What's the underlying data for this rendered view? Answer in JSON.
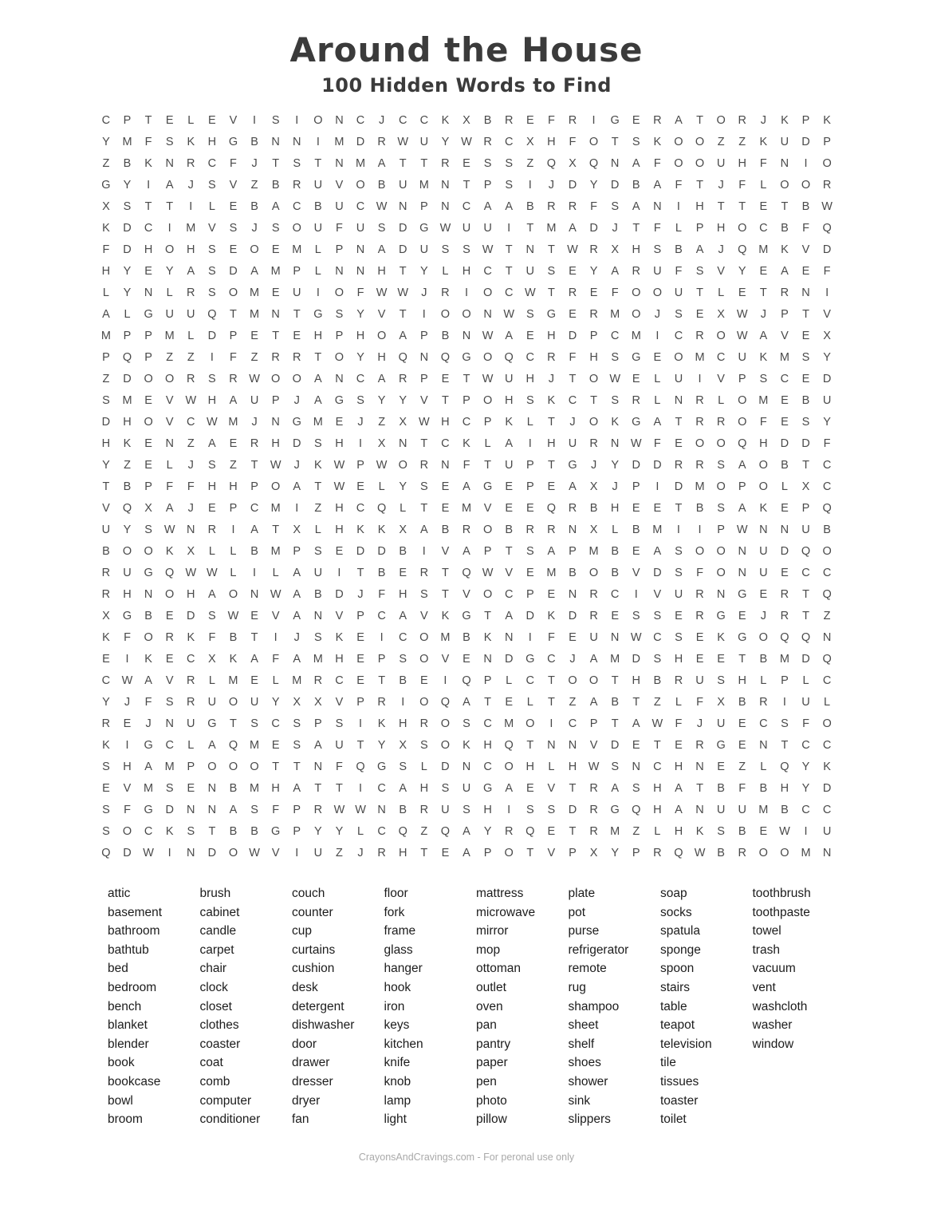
{
  "header": {
    "title": "Around the House",
    "subtitle": "100 Hidden Words to Find"
  },
  "grid": {
    "rows": 35,
    "cols": 35,
    "letters": [
      "CPTELEVISIONCJCCKXBREFRIGERATORJKPK",
      "YMFSKHGBNNIMDRWUYWRCXHFOTSKOOZZKUDP",
      "ZBKNRCFJTSTNMATTRESSZQXQNAFOOUHFNIO",
      "GYIAJSVZBRUVOBUMNTPSIJDYDBAFTJFLOOR",
      "XSTTILEBACBUCWNPNCAABRRFSANIHTTETBW",
      "KDCIMVSJSOUFUSDGWUUITMADJTFLPHOCBFQ",
      "FDHOHSEOEMLPNADUSSWTNTWRXHSBAJQMKVD",
      "HYEYASDAMPLNNHTYLHCTUSEYARUFSVYEAEF",
      "LYNLRSOMEUIOFWWJRIOCWTREFOOUTLETRNI",
      "ALGUUQTMNTGSYVTIOONWSGERMOJSEXWJPTV",
      "MPPMLDPETEHPHOAPBNWAEHDPCMICROWAVEX",
      "PQPZZIFZRRTOYHQNQGOQCRFHSGEOMCUKMSY",
      "ZDOORSRWOOANCARPETWUHJTOWELUIVPSCED",
      "SMEVWHAUPJAGSYYVTPOHSKCTSRLNRLOMEBU",
      "DHOVCWMJNGMEJZXWHCPKLTJOKGATRROFESY",
      "HKENZAERHDSHIXNTCKLAIHURNWFEOOQHDDF",
      "YZELJSZTWJKWPWORNFTUPTGJYDDRRSAOBTC",
      "TBPFFHHPOATWELYSEAGEPEAXJPIDMOPOLXC",
      "VQXAJEPCMIZHCQLTEMVEEQRBHEETBSAKEPQ",
      "UYSWNRIATXLHKKXABROBRRNXLBMIIPWNNUB",
      "BOOKXLLBMPSEDDBIVAPTSAPMBEASOONUDQO",
      "RUGQWWLILAUITBERTQWVEMBOBVDSFONUECC",
      "RHNOHAONWABDJFHSTVOCPENRCIVURNGERTQ",
      "XGBEDSWEVANVPCAVKGTADKDRESSERGEJRTZ",
      "KFORKFBTIJSKEICOMBKNIFEUNWCSEKGOQQN",
      "EIKECXKAFAMHEPSOVENDGCJAMDSHEETBMDQ",
      "CWAVRLMELMRCETBEIQPLCTOOTHBRUSHLPLC",
      "YJFSRUOUYXXVPRIOQATELTZABTZLFXBRIUL",
      "REJNUGTSCSPSIKHROSCMOICPTAWFJUECSFO",
      "KIGCLAQMESAUTYXSOKHQTNNVDETERGENTCC",
      "SHAMPOOOTTNFQGSLDNCOHLHWSNCHNEZLQYK",
      "EVMSENBMHATTICAHSUGAEVTRASHATBFBHYD",
      "SFGDNNASFPRWWNBRUSHISSDRGQHANUUMBCC",
      "SOCKSTBBGPYYLCQZQAYRQETRMZLHKSBEWIU",
      "QDWINDOWVIUZJRHTEAPOTVPXYPRQWBROOMN"
    ]
  },
  "word_list": {
    "columns": [
      [
        "attic",
        "basement",
        "bathroom",
        "bathtub",
        "bed",
        "bedroom",
        "bench",
        "blanket",
        "blender",
        "book",
        "bookcase",
        "bowl",
        "broom"
      ],
      [
        "brush",
        "cabinet",
        "candle",
        "carpet",
        "chair",
        "clock",
        "closet",
        "clothes",
        "coaster",
        "coat",
        "comb",
        "computer",
        "conditioner"
      ],
      [
        "couch",
        "counter",
        "cup",
        "curtains",
        "cushion",
        "desk",
        "detergent",
        "dishwasher",
        "door",
        "drawer",
        "dresser",
        "dryer",
        "fan"
      ],
      [
        "floor",
        "fork",
        "frame",
        "glass",
        "hanger",
        "hook",
        "iron",
        "keys",
        "kitchen",
        "knife",
        "knob",
        "lamp",
        "light"
      ],
      [
        "mattress",
        "microwave",
        "mirror",
        "mop",
        "ottoman",
        "outlet",
        "oven",
        "pan",
        "pantry",
        "paper",
        "pen",
        "photo",
        "pillow"
      ],
      [
        "plate",
        "pot",
        "purse",
        "refrigerator",
        "remote",
        "rug",
        "shampoo",
        "sheet",
        "shelf",
        "shoes",
        "shower",
        "sink",
        "slippers"
      ],
      [
        "soap",
        "socks",
        "spatula",
        "sponge",
        "spoon",
        "stairs",
        "table",
        "teapot",
        "television",
        "tile",
        "tissues",
        "toaster",
        "toilet"
      ],
      [
        "toothbrush",
        "toothpaste",
        "towel",
        "trash",
        "vacuum",
        "vent",
        "washcloth",
        "washer",
        "window"
      ]
    ]
  },
  "footer": {
    "credit": "CrayonsAndCravings.com - For peronal use only"
  },
  "colors": {
    "background": "#ffffff",
    "title": "#3b3b3b",
    "grid_letter": "#4a4a4a",
    "word": "#1c1c1c",
    "footer": "#a9a9a9"
  }
}
